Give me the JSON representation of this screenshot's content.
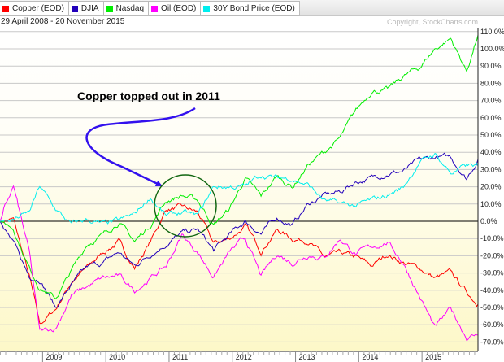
{
  "legend": [
    {
      "name": "Copper (EOD)",
      "color": "#ff0000"
    },
    {
      "name": "DJIA",
      "color": "#2200bb"
    },
    {
      "name": "Nasdaq",
      "color": "#00ee00"
    },
    {
      "name": "Oil (EOD)",
      "color": "#ff00ff"
    },
    {
      "name": "30Y Bond Price (EOD)",
      "color": "#00eeee"
    }
  ],
  "date_range": "29 April 2008 - 20 November 2015",
  "copyright": "Copyright, StockCharts.com",
  "annotation": {
    "text": "Copper topped out in 2011",
    "arrow_color": "#3311ee",
    "circle_color": "#116611"
  },
  "chart_data": {
    "type": "line",
    "title": "",
    "xlabel": "",
    "ylabel": "",
    "xlim": [
      "2008-04-29",
      "2015-11-20"
    ],
    "ylim": [
      -70,
      110
    ],
    "yticks": [
      110,
      100,
      90,
      80,
      70,
      60,
      50,
      40,
      30,
      20,
      10,
      0,
      -10,
      -20,
      -30,
      -40,
      -50,
      -60,
      -70
    ],
    "ytick_labels": [
      "110.0%",
      "100.0%",
      "90.0%",
      "80.0%",
      "70.0%",
      "60.0%",
      "50.0%",
      "40.0%",
      "30.0%",
      "20.0%",
      "10.0%",
      "0.0%",
      "-10.0%",
      "-20.0%",
      "-30.0%",
      "-40.0%",
      "-50.0%",
      "-60.0%",
      "-70.0%"
    ],
    "xtick_labels": [
      "2009",
      "2010",
      "2011",
      "2012",
      "2013",
      "2014",
      "2015"
    ],
    "grid": true,
    "legend_placement": "top",
    "dates": [
      "2008-04",
      "2008-07",
      "2008-10",
      "2008-12",
      "2009-03",
      "2009-06",
      "2009-09",
      "2009-12",
      "2010-03",
      "2010-06",
      "2010-09",
      "2010-12",
      "2011-03",
      "2011-06",
      "2011-09",
      "2011-12",
      "2012-03",
      "2012-06",
      "2012-09",
      "2012-12",
      "2013-03",
      "2013-06",
      "2013-09",
      "2013-12",
      "2014-03",
      "2014-06",
      "2014-09",
      "2014-12",
      "2015-03",
      "2015-06",
      "2015-09",
      "2015-11"
    ],
    "series": [
      {
        "name": "Copper (EOD)",
        "color": "#ff0000",
        "values": [
          0,
          1,
          -32,
          -60,
          -51,
          -35,
          -27,
          -18,
          -12,
          -27,
          -12,
          7,
          8,
          5,
          -13,
          -10,
          -3,
          -17,
          -5,
          -10,
          -11,
          -21,
          -19,
          -21,
          -26,
          -19,
          -24,
          -27,
          -33,
          -30,
          -41,
          -48
        ]
      },
      {
        "name": "DJIA",
        "color": "#2200bb",
        "values": [
          0,
          -13,
          -32,
          -33,
          -50,
          -37,
          -27,
          -24,
          -18,
          -26,
          -19,
          -13,
          -7,
          -5,
          -17,
          -8,
          0,
          -7,
          2,
          -2,
          10,
          15,
          17,
          23,
          25,
          28,
          29,
          35,
          37,
          37,
          25,
          36
        ]
      },
      {
        "name": "Nasdaq",
        "color": "#00ee00",
        "values": [
          0,
          -4,
          -27,
          -38,
          -45,
          -29,
          -13,
          -8,
          0,
          -12,
          -2,
          12,
          15,
          12,
          -2,
          7,
          25,
          14,
          26,
          20,
          33,
          40,
          48,
          64,
          76,
          76,
          84,
          89,
          100,
          106,
          87,
          108
        ]
      },
      {
        "name": "Oil (EOD)",
        "color": "#ff00ff",
        "values": [
          0,
          20,
          -18,
          -64,
          -62,
          -43,
          -38,
          -33,
          -32,
          -40,
          -33,
          -26,
          -8,
          -18,
          -32,
          -18,
          -10,
          -32,
          -19,
          -24,
          -19,
          -21,
          -10,
          -19,
          -15,
          -12,
          -24,
          -43,
          -62,
          -51,
          -67,
          -66
        ]
      },
      {
        "name": "30Y Bond Price (EOD)",
        "color": "#00eeee",
        "values": [
          0,
          1,
          5,
          20,
          7,
          -2,
          1,
          -2,
          0,
          4,
          14,
          3,
          5,
          3,
          20,
          20,
          20,
          27,
          25,
          25,
          21,
          12,
          10,
          9,
          12,
          15,
          20,
          34,
          39,
          28,
          32,
          32
        ]
      }
    ]
  }
}
